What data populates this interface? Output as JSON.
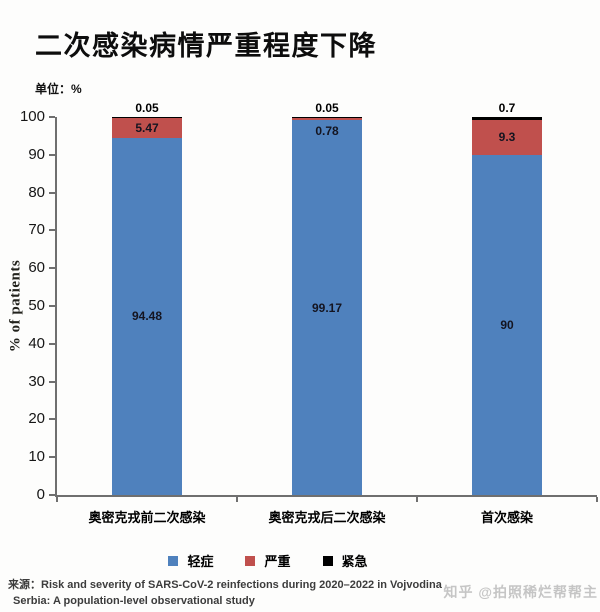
{
  "title": "二次感染病情严重程度下降",
  "unit_label": "单位：%",
  "chart_data": {
    "type": "bar",
    "stacked": true,
    "title": "二次感染病情严重程度下降",
    "unit": "%",
    "categories": [
      "奥密克戎前二次感染",
      "奥密克戎后二次感染",
      "首次感染"
    ],
    "series": [
      {
        "name": "轻症",
        "color": "#4f81bd",
        "values": [
          94.48,
          99.17,
          90
        ]
      },
      {
        "name": "严重",
        "color": "#c0504d",
        "values": [
          5.47,
          0.78,
          9.3
        ]
      },
      {
        "name": "紧急",
        "color": "#000000",
        "values": [
          0.05,
          0.05,
          0.7
        ]
      }
    ],
    "ylabel": "% of patients",
    "ylim": [
      0,
      100
    ],
    "yticks": [
      0,
      10,
      20,
      30,
      40,
      50,
      60,
      70,
      80,
      90,
      100
    ],
    "grid": false,
    "legend_position": "bottom",
    "axis_color": "#6f6f6f"
  },
  "source": {
    "prefix": "来源：",
    "line1": "Risk and severity of SARS-CoV-2 reinfections during 2020–2022 in Vojvodina",
    "line2": "Serbia: A population-level observational study"
  },
  "watermark": "知乎 @拍照稀烂帮帮主"
}
